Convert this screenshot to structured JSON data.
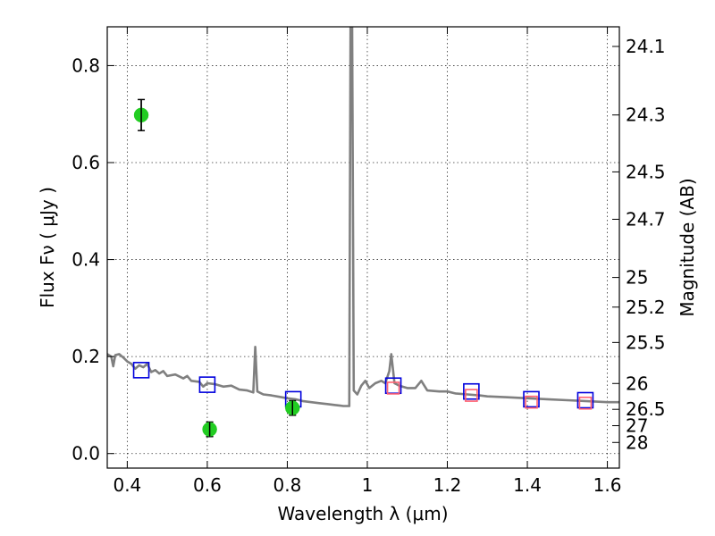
{
  "chart_data": {
    "type": "scatter",
    "xlabel": "Wavelength  λ (μm)",
    "ylabel": "Flux  Fν  ( μJy )",
    "y2label": "Magnitude (AB)",
    "xlim": [
      0.35,
      1.63
    ],
    "ylim": [
      -0.03,
      0.88
    ],
    "x_ticks": [
      0.4,
      0.6,
      0.8,
      1.0,
      1.2,
      1.4,
      1.6
    ],
    "x_tick_labels": [
      "0.4",
      "0.6",
      "0.8",
      "1",
      "1.2",
      "1.4",
      "1.6"
    ],
    "y_ticks": [
      0.0,
      0.2,
      0.4,
      0.6,
      0.8
    ],
    "y_tick_labels": [
      "0.0",
      "0.2",
      "0.4",
      "0.6",
      "0.8"
    ],
    "magnitude_ticks": [
      {
        "mag": "24.1",
        "flux": 0.8395
      },
      {
        "mag": "24.3",
        "flux": 0.6982
      },
      {
        "mag": "24.5",
        "flux": 0.5808
      },
      {
        "mag": "24.7",
        "flux": 0.4831
      },
      {
        "mag": "25",
        "flux": 0.3631
      },
      {
        "mag": "25.2",
        "flux": 0.302
      },
      {
        "mag": "25.5",
        "flux": 0.2291
      },
      {
        "mag": "26",
        "flux": 0.1445
      },
      {
        "mag": "26.5",
        "flux": 0.0912
      },
      {
        "mag": "27",
        "flux": 0.0575
      },
      {
        "mag": "28",
        "flux": 0.0229
      }
    ],
    "grid": true,
    "series": [
      {
        "kind": "line",
        "color": "#808080",
        "points": [
          [
            0.35,
            0.205
          ],
          [
            0.36,
            0.2
          ],
          [
            0.365,
            0.18
          ],
          [
            0.37,
            0.203
          ],
          [
            0.38,
            0.205
          ],
          [
            0.39,
            0.198
          ],
          [
            0.4,
            0.19
          ],
          [
            0.41,
            0.185
          ],
          [
            0.42,
            0.175
          ],
          [
            0.43,
            0.182
          ],
          [
            0.44,
            0.178
          ],
          [
            0.45,
            0.185
          ],
          [
            0.46,
            0.168
          ],
          [
            0.47,
            0.172
          ],
          [
            0.48,
            0.165
          ],
          [
            0.49,
            0.17
          ],
          [
            0.5,
            0.16
          ],
          [
            0.52,
            0.163
          ],
          [
            0.54,
            0.155
          ],
          [
            0.55,
            0.16
          ],
          [
            0.56,
            0.15
          ],
          [
            0.58,
            0.148
          ],
          [
            0.59,
            0.138
          ],
          [
            0.6,
            0.145
          ],
          [
            0.62,
            0.143
          ],
          [
            0.64,
            0.138
          ],
          [
            0.66,
            0.14
          ],
          [
            0.68,
            0.132
          ],
          [
            0.7,
            0.13
          ],
          [
            0.715,
            0.126
          ],
          [
            0.72,
            0.22
          ],
          [
            0.725,
            0.128
          ],
          [
            0.74,
            0.122
          ],
          [
            0.76,
            0.12
          ],
          [
            0.78,
            0.117
          ],
          [
            0.8,
            0.114
          ],
          [
            0.82,
            0.112
          ],
          [
            0.84,
            0.108
          ],
          [
            0.86,
            0.106
          ],
          [
            0.88,
            0.104
          ],
          [
            0.9,
            0.102
          ],
          [
            0.92,
            0.1
          ],
          [
            0.94,
            0.098
          ],
          [
            0.955,
            0.098
          ],
          [
            0.958,
            0.88
          ],
          [
            0.962,
            0.88
          ],
          [
            0.966,
            0.13
          ],
          [
            0.975,
            0.122
          ],
          [
            0.985,
            0.14
          ],
          [
            0.995,
            0.15
          ],
          [
            1.005,
            0.135
          ],
          [
            1.02,
            0.145
          ],
          [
            1.035,
            0.15
          ],
          [
            1.045,
            0.145
          ],
          [
            1.055,
            0.17
          ],
          [
            1.06,
            0.205
          ],
          [
            1.068,
            0.145
          ],
          [
            1.08,
            0.14
          ],
          [
            1.1,
            0.135
          ],
          [
            1.12,
            0.135
          ],
          [
            1.135,
            0.15
          ],
          [
            1.15,
            0.13
          ],
          [
            1.18,
            0.128
          ],
          [
            1.2,
            0.128
          ],
          [
            1.22,
            0.124
          ],
          [
            1.25,
            0.122
          ],
          [
            1.28,
            0.12
          ],
          [
            1.3,
            0.118
          ],
          [
            1.35,
            0.116
          ],
          [
            1.4,
            0.114
          ],
          [
            1.45,
            0.112
          ],
          [
            1.5,
            0.11
          ],
          [
            1.55,
            0.108
          ],
          [
            1.6,
            0.106
          ],
          [
            1.63,
            0.106
          ]
        ]
      },
      {
        "kind": "open-square",
        "color": "#0000dd",
        "points": [
          [
            0.435,
            0.172
          ],
          [
            0.6,
            0.142
          ],
          [
            0.815,
            0.112
          ],
          [
            1.065,
            0.14
          ],
          [
            1.26,
            0.128
          ],
          [
            1.41,
            0.112
          ],
          [
            1.545,
            0.11
          ]
        ]
      },
      {
        "kind": "open-square",
        "color": "#ff6070",
        "points": [
          [
            1.065,
            0.135
          ],
          [
            1.26,
            0.12
          ],
          [
            1.41,
            0.106
          ],
          [
            1.545,
            0.104
          ]
        ]
      },
      {
        "kind": "filled-circle-errorbar",
        "color": "#22cc22",
        "points": [
          {
            "x": 0.435,
            "y": 0.698,
            "err": 0.032
          },
          {
            "x": 0.606,
            "y": 0.05,
            "err": 0.015
          },
          {
            "x": 0.813,
            "y": 0.094,
            "err": 0.015
          }
        ]
      }
    ]
  }
}
